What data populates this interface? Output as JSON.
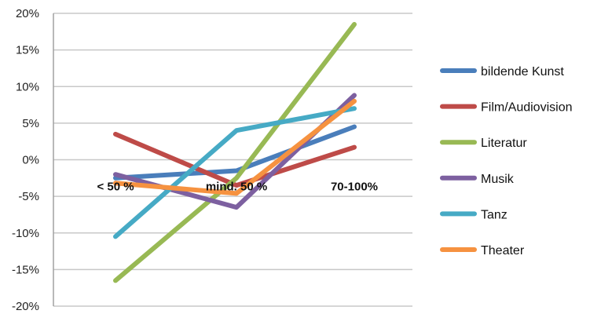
{
  "chart_data": {
    "type": "line",
    "title": "",
    "xlabel": "",
    "ylabel": "",
    "categories": [
      "< 50 %",
      "mind. 50 %",
      "70-100%"
    ],
    "yticks": [
      "20%",
      "15%",
      "10%",
      "5%",
      "0%",
      "-5%",
      "-10%",
      "-15%",
      "-20%"
    ],
    "ylim": [
      -20,
      20
    ],
    "grid": true,
    "legend_position": "right",
    "series": [
      {
        "name": "bildende Kunst",
        "color": "#4a7ebb",
        "values": [
          -2.5,
          -1.5,
          4.5
        ]
      },
      {
        "name": "Film/Audiovision",
        "color": "#be4b48",
        "values": [
          3.5,
          -3.5,
          1.7
        ]
      },
      {
        "name": "Literatur",
        "color": "#98b954",
        "values": [
          -16.5,
          -2.5,
          18.5
        ]
      },
      {
        "name": "Musik",
        "color": "#7d60a0",
        "values": [
          -2.0,
          -6.5,
          8.8
        ]
      },
      {
        "name": "Tanz",
        "color": "#46aac5",
        "values": [
          -10.5,
          4.0,
          7.0
        ]
      },
      {
        "name": "Theater",
        "color": "#f69240",
        "values": [
          -3.2,
          -4.6,
          8.0
        ]
      }
    ]
  }
}
